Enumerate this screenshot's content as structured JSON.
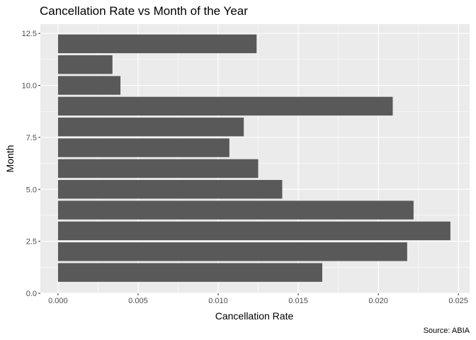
{
  "chart_data": {
    "type": "bar",
    "orientation": "horizontal",
    "title": "Cancellation Rate vs Month of the Year",
    "xlabel": "Cancellation Rate",
    "ylabel": "Month",
    "caption": "Source: ABIA",
    "categories": [
      1,
      2,
      3,
      4,
      5,
      6,
      7,
      8,
      9,
      10,
      11,
      12
    ],
    "values": [
      0.0165,
      0.0218,
      0.0245,
      0.0222,
      0.014,
      0.0125,
      0.0107,
      0.0116,
      0.0209,
      0.0039,
      0.0034,
      0.0124
    ],
    "xlim": [
      -0.0011,
      0.0257
    ],
    "ylim": [
      0,
      12.95
    ],
    "xticks": [
      "0.000",
      "0.005",
      "0.010",
      "0.015",
      "0.020",
      "0.025"
    ],
    "yticks": [
      "0.0",
      "2.5",
      "5.0",
      "7.5",
      "10.0",
      "12.5"
    ],
    "grid": true,
    "panel_color": "#ebebeb",
    "bar_color": "#595959"
  }
}
